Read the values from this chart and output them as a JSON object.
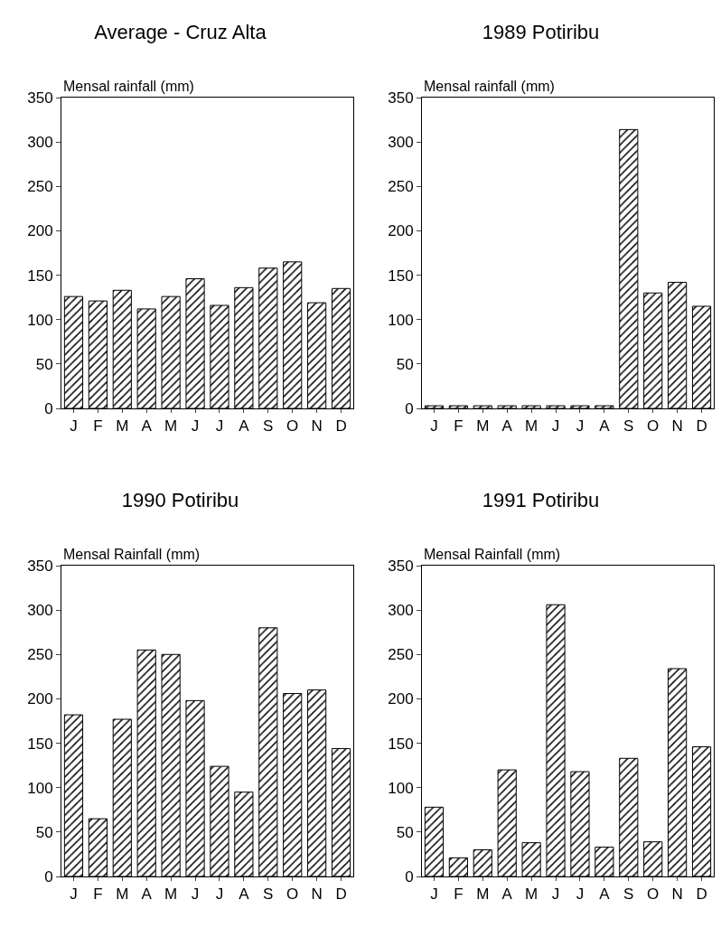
{
  "chart_data": [
    {
      "type": "bar",
      "title": "Average - Cruz Alta",
      "ylabel": "Mensal rainfall (mm)",
      "categories": [
        "J",
        "F",
        "M",
        "A",
        "M",
        "J",
        "J",
        "A",
        "S",
        "O",
        "N",
        "D"
      ],
      "values": [
        126,
        121,
        133,
        112,
        126,
        146,
        116,
        136,
        158,
        165,
        119,
        135
      ],
      "color": "#000000",
      "ylim": [
        0,
        350
      ],
      "yticks": [
        0,
        50,
        100,
        150,
        200,
        250,
        300,
        350
      ],
      "grid": false,
      "legend": false
    },
    {
      "type": "bar",
      "title": "1989 Potiribu",
      "ylabel": "Mensal rainfall (mm)",
      "categories": [
        "J",
        "F",
        "M",
        "A",
        "M",
        "J",
        "J",
        "A",
        "S",
        "O",
        "N",
        "D"
      ],
      "values": [
        3,
        3,
        3,
        3,
        3,
        3,
        3,
        3,
        314,
        130,
        142,
        115
      ],
      "color": "#000000",
      "ylim": [
        0,
        350
      ],
      "yticks": [
        0,
        50,
        100,
        150,
        200,
        250,
        300,
        350
      ],
      "grid": false,
      "legend": false
    },
    {
      "type": "bar",
      "title": "1990 Potiribu",
      "ylabel": "Mensal Rainfall (mm)",
      "categories": [
        "J",
        "F",
        "M",
        "A",
        "M",
        "J",
        "J",
        "A",
        "S",
        "O",
        "N",
        "D"
      ],
      "values": [
        182,
        65,
        177,
        255,
        250,
        198,
        124,
        95,
        280,
        206,
        210,
        144
      ],
      "color": "#000000",
      "ylim": [
        0,
        350
      ],
      "yticks": [
        0,
        50,
        100,
        150,
        200,
        250,
        300,
        350
      ],
      "grid": false,
      "legend": false
    },
    {
      "type": "bar",
      "title": "1991 Potiribu",
      "ylabel": "Mensal Rainfall (mm)",
      "categories": [
        "J",
        "F",
        "M",
        "A",
        "M",
        "J",
        "J",
        "A",
        "S",
        "O",
        "N",
        "D"
      ],
      "values": [
        78,
        21,
        30,
        120,
        38,
        306,
        118,
        33,
        133,
        39,
        234,
        146
      ],
      "color": "#000000",
      "ylim": [
        0,
        350
      ],
      "yticks": [
        0,
        50,
        100,
        150,
        200,
        250,
        300,
        350
      ],
      "grid": false,
      "legend": false
    }
  ]
}
